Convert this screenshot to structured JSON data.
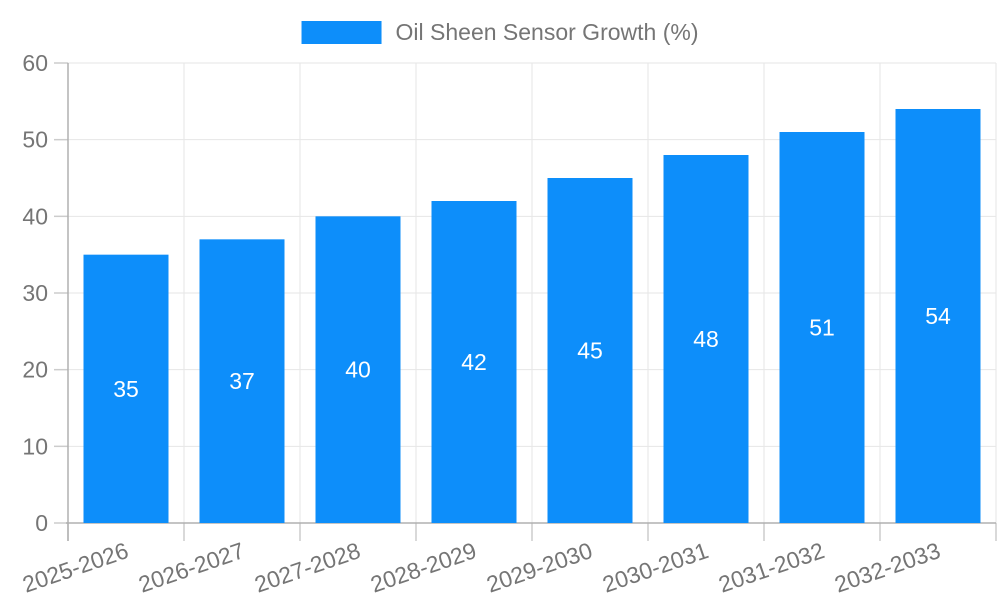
{
  "chart_data": {
    "type": "bar",
    "legend": "Oil Sheen Sensor Growth (%)",
    "legend_position": "top-center",
    "categories": [
      "2025-2026",
      "2026-2027",
      "2027-2028",
      "2028-2029",
      "2029-2030",
      "2030-2031",
      "2031-2032",
      "2032-2033"
    ],
    "values": [
      35,
      37,
      40,
      42,
      45,
      48,
      51,
      54
    ],
    "xlabel": "",
    "ylabel": "",
    "ylim": [
      0,
      60
    ],
    "yticks": [
      0,
      10,
      20,
      30,
      40,
      50,
      60
    ],
    "grid": true,
    "x_label_rotation_deg": -19,
    "colors": {
      "bar": "#0d8efa",
      "bar_value_label": "#ffffff",
      "axis_line": "#b0b0b0",
      "tick_mark": "#cccccc",
      "gridline": "#e6e6e6",
      "tick_text": "#757575",
      "legend_text": "#757575",
      "background": "#ffffff"
    }
  }
}
